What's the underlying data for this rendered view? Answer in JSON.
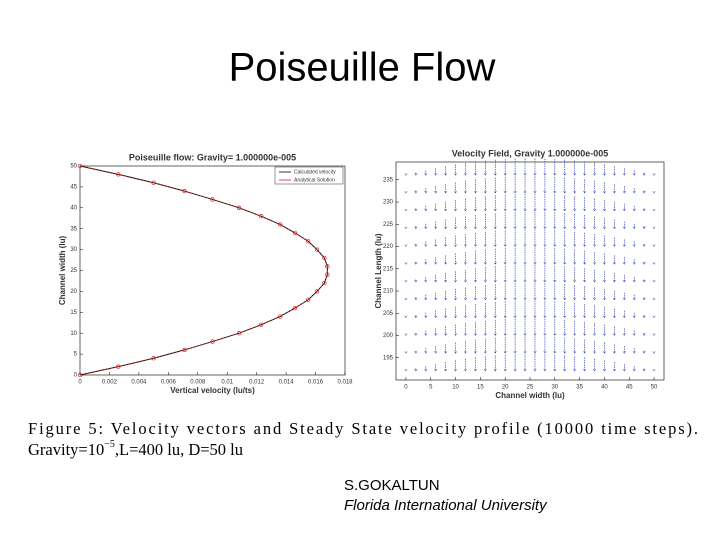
{
  "slide_title": "Poiseuille Flow",
  "caption": {
    "line1": "Figure 5:  Velocity vectors and Steady State velocity profile (10000 time steps).",
    "line2": [
      "Gravity=10",
      "−5",
      ",L=400 lu, D=50 lu"
    ]
  },
  "author": {
    "name": "S.GOKALTUN",
    "affiliation": "Florida International University"
  },
  "chart_data": [
    {
      "type": "profile",
      "title": "Poiseuille flow: Gravity= 1.000000e-005",
      "x_label": "Vertical velocity (lu/ts)",
      "y_label": "Channel width (lu)",
      "y": [
        0,
        2,
        4,
        6,
        8,
        10,
        12,
        14,
        16,
        18,
        20,
        22,
        24,
        26,
        28,
        30,
        32,
        34,
        36,
        38,
        40,
        42,
        44,
        46,
        48,
        50
      ],
      "series": [
        {
          "name": "Calculated velocity",
          "color": "#000000",
          "values": [
            0,
            0.0026,
            0.005,
            0.0071,
            0.009,
            0.0108,
            0.0123,
            0.0136,
            0.0146,
            0.0155,
            0.0161,
            0.0166,
            0.0168,
            0.0168,
            0.0166,
            0.0161,
            0.0155,
            0.0146,
            0.0136,
            0.0123,
            0.0108,
            0.009,
            0.0071,
            0.005,
            0.0026,
            0
          ]
        },
        {
          "name": "Analytical Solution",
          "color": "#d42020",
          "values": [
            0,
            0.0026,
            0.005,
            0.0071,
            0.009,
            0.0108,
            0.0123,
            0.0136,
            0.0146,
            0.0155,
            0.0161,
            0.0166,
            0.0168,
            0.0168,
            0.0166,
            0.0161,
            0.0155,
            0.0146,
            0.0136,
            0.0123,
            0.0108,
            0.009,
            0.0071,
            0.005,
            0.0026,
            0
          ]
        }
      ],
      "xlim": [
        0,
        0.018
      ],
      "xticks": [
        0,
        0.002,
        0.004,
        0.006,
        0.008,
        0.01,
        0.012,
        0.014,
        0.016,
        0.018
      ],
      "ylim": [
        0,
        50
      ],
      "yticks": [
        0,
        5,
        10,
        15,
        20,
        25,
        30,
        35,
        40,
        45,
        50
      ],
      "legend": "upper right"
    },
    {
      "type": "quiver",
      "title": "Velocity Field, Gravity 1.000000e-005",
      "x_label": "Channel width (lu)",
      "y_label": "Channel Length (lu)",
      "color": "#2233aa",
      "x": [
        0,
        2,
        4,
        6,
        8,
        10,
        12,
        14,
        16,
        18,
        20,
        22,
        24,
        26,
        28,
        30,
        32,
        34,
        36,
        38,
        40,
        42,
        44,
        46,
        48,
        50
      ],
      "rows": [
        192,
        196,
        200,
        204,
        208,
        212,
        216,
        220,
        224,
        228,
        232,
        236
      ],
      "values": [
        0,
        0.0026,
        0.005,
        0.0071,
        0.009,
        0.0108,
        0.0123,
        0.0136,
        0.0146,
        0.0155,
        0.0161,
        0.0166,
        0.0168,
        0.0168,
        0.0166,
        0.0161,
        0.0155,
        0.0146,
        0.0136,
        0.0123,
        0.0108,
        0.009,
        0.0071,
        0.005,
        0.0026,
        0
      ],
      "xlim": [
        -2,
        52
      ],
      "xticks": [
        0,
        5,
        10,
        15,
        20,
        25,
        30,
        35,
        40,
        45,
        50
      ],
      "ylim": [
        190,
        239
      ],
      "yticks": [
        195,
        200,
        205,
        210,
        215,
        220,
        225,
        230,
        235
      ]
    }
  ]
}
